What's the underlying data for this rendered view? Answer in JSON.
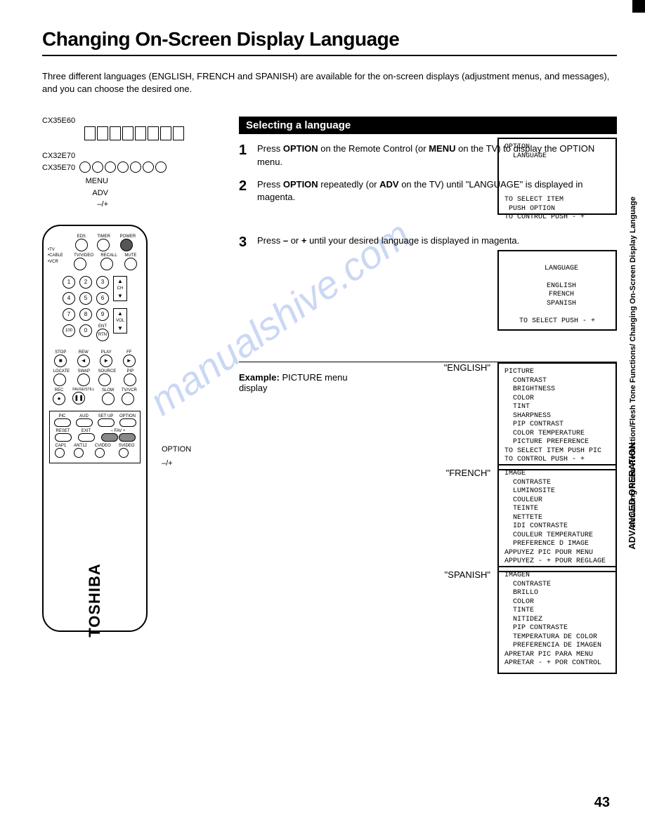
{
  "page_title": "Changing On-Screen Display Language",
  "intro": "Three different languages (ENGLISH, FRENCH and SPANISH) are available for the on-screen displays (adjustment menus, and messages), and you can choose the desired one.",
  "section_header": "Selecting a language",
  "steps": [
    {
      "num": "1",
      "html": "Press <b>OPTION</b> on the Remote Control (or <b>MENU</b> on the TV) to display the OPTION menu."
    },
    {
      "num": "2",
      "html": "Press <b>OPTION</b> repeatedly (or <b>ADV</b> on the TV) until \"LANGUAGE\" is displayed in magenta."
    },
    {
      "num": "3",
      "html": "Press <b>–</b> or <b>+</b> until your desired language is displayed in magenta."
    }
  ],
  "screen1": "OPTION\n  LANGUAGE\n\n\n\n\nTO SELECT ITEM\n PUSH OPTION\nTO CONTROL PUSH - +",
  "screen2": "\n  LANGUAGE\n\n  ENGLISH\n  FRENCH\n  SPANISH\n\nTO SELECT PUSH - +",
  "example_label": "Example:",
  "example_text": "PICTURE menu",
  "example_sub": "display",
  "lang_labels": {
    "en": "\"ENGLISH\"",
    "fr": "\"FRENCH\"",
    "es": "\"SPANISH\""
  },
  "screen_en": "PICTURE\n  CONTRAST\n  BRIGHTNESS\n  COLOR\n  TINT\n  SHARPNESS\n  PIP CONTRAST\n  COLOR TEMPERATURE\n  PICTURE PREFERENCE\nTO SELECT ITEM PUSH PIC\nTO CONTROL PUSH - +",
  "screen_fr": "IMAGE\n  CONTRASTE\n  LUMINOSITE\n  COULEUR\n  TEINTE\n  NETTETE\n  IDI CONTRASTE\n  COULEUR TEMPERATURE\n  PREFERENCE D IMAGE\nAPPUYEZ PIC POUR MENU\nAPPUYEZ - + POUR REGLAGE",
  "screen_es": "IMAGEN\n  CONTRASTE\n  BRILLO\n  COLOR\n  TINTE\n  NITIDEZ\n  PIP CONTRASTE\n  TEMPERATURA DE COLOR\n  PREFERENCIA DE IMAGEN\nAPRETAR PIC PARA MENU\nAPRETAR - + POR CONTROL",
  "page_number": "43",
  "side_text1": "Activating Noise Reduction/Flesh Tone Functions/\nChanging On-Screen Display Language",
  "side_text2": "ADVANCED\nOPERATION",
  "models": {
    "m1": "CX35E60",
    "m2a": "CX32E70",
    "m2b": "CX35E70"
  },
  "tv_labels": {
    "menu": "MENU",
    "adv": "ADV",
    "pm": "–/+"
  },
  "remote_labels": {
    "option": "OPTION",
    "pm": "–/+"
  },
  "remote_brand": "TOSHIBA",
  "remote_top_labels": [
    "EDS",
    "TIMER",
    "POWER"
  ],
  "remote_row2_labels": [
    "TV/VIDEO",
    "RECALL",
    "MUTE"
  ],
  "remote_side_labels": [
    "TV",
    "CABLE",
    "VCR"
  ],
  "remote_numpad": [
    "1",
    "2",
    "3",
    "4",
    "5",
    "6",
    "7",
    "8",
    "9",
    "100",
    "0",
    "RTN"
  ],
  "remote_ch": "CH",
  "remote_vol": "VOL",
  "remote_ent": "ENT",
  "remote_transport1": [
    "STOP",
    "REW",
    "PLAY",
    "FF"
  ],
  "remote_transport2": [
    "LOCATE",
    "SWAP",
    "SOURCE",
    "PIP"
  ],
  "remote_transport3": [
    "REC",
    "PAUSE/STILL",
    "SLOW",
    "TV/VCR"
  ],
  "remote_bottom_labels": [
    "PIC",
    "AUD",
    "SET UP",
    "OPTION"
  ],
  "remote_bottom2": [
    "RESET",
    "EXIT",
    "– FAV +"
  ],
  "remote_bottom3": [
    "CAP1",
    "ANT12",
    "CVIDEO",
    "SVIDEO"
  ],
  "watermark": "manualshive.com"
}
